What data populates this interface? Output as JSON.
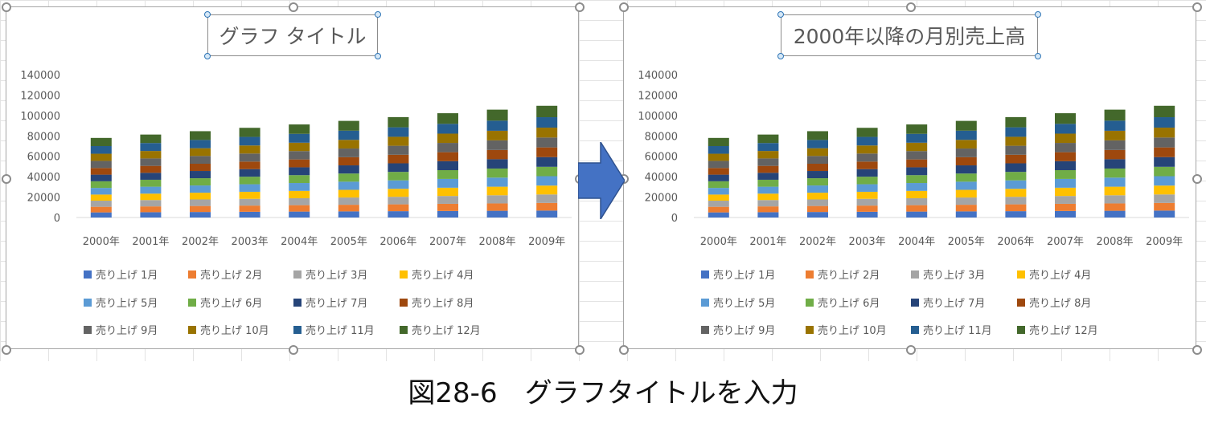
{
  "caption": "図28-6　グラフタイトルを入力",
  "colors": {
    "series": [
      "#4472c4",
      "#ed7d31",
      "#a5a5a5",
      "#ffc000",
      "#5b9bd5",
      "#70ad47",
      "#264478",
      "#9e480e",
      "#636363",
      "#997300",
      "#255e91",
      "#43682b"
    ],
    "arrow": "#4472c4",
    "selection_handle": "#2e75b6"
  },
  "charts": [
    {
      "title": "グラフ タイトル"
    },
    {
      "title": "2000年以降の月別売上高"
    }
  ],
  "chart_data": [
    {
      "type": "bar",
      "stacked": true,
      "title": "グラフ タイトル",
      "categories": [
        "2000年",
        "2001年",
        "2002年",
        "2003年",
        "2004年",
        "2005年",
        "2006年",
        "2007年",
        "2008年",
        "2009年"
      ],
      "ylim": [
        0,
        140000
      ],
      "yticks": [
        0,
        20000,
        40000,
        60000,
        80000,
        100000,
        120000,
        140000
      ],
      "grid": false,
      "legend": "bottom",
      "series": [
        {
          "name": "売り上げ 1月",
          "values": [
            5000,
            5200,
            5400,
            5600,
            5800,
            6000,
            6200,
            6400,
            6600,
            6800
          ]
        },
        {
          "name": "売り上げ 2月",
          "values": [
            5500,
            5700,
            5900,
            6100,
            6300,
            6500,
            6700,
            7000,
            7200,
            7500
          ]
        },
        {
          "name": "売り上げ 3月",
          "values": [
            6000,
            6200,
            6400,
            6600,
            6800,
            7100,
            7400,
            7700,
            8000,
            8300
          ]
        },
        {
          "name": "売り上げ 4月",
          "values": [
            6000,
            6300,
            6600,
            6900,
            7200,
            7500,
            7800,
            8100,
            8400,
            8700
          ]
        },
        {
          "name": "売り上げ 5月",
          "values": [
            6500,
            6800,
            7100,
            7400,
            7700,
            8000,
            8300,
            8600,
            8900,
            9200
          ]
        },
        {
          "name": "売り上げ 6月",
          "values": [
            6500,
            6800,
            7100,
            7400,
            7700,
            8000,
            8300,
            8600,
            8900,
            9200
          ]
        },
        {
          "name": "売り上げ 7月",
          "values": [
            6500,
            6800,
            7100,
            7400,
            7700,
            8000,
            8400,
            8800,
            9100,
            9500
          ]
        },
        {
          "name": "売り上げ 8月",
          "values": [
            6500,
            6800,
            7100,
            7400,
            7700,
            8000,
            8400,
            8800,
            9100,
            9500
          ]
        },
        {
          "name": "売り上げ 9月",
          "values": [
            7000,
            7300,
            7600,
            7900,
            8200,
            8500,
            8800,
            9100,
            9400,
            9700
          ]
        },
        {
          "name": "売り上げ 10月",
          "values": [
            7000,
            7300,
            7600,
            7900,
            8200,
            8500,
            8800,
            9100,
            9400,
            9700
          ]
        },
        {
          "name": "売り上げ 11月",
          "values": [
            7500,
            7800,
            8100,
            8400,
            8700,
            9000,
            9300,
            9600,
            9900,
            10200
          ]
        },
        {
          "name": "売り上げ 12月",
          "values": [
            8000,
            8300,
            8600,
            8900,
            9200,
            9600,
            10000,
            10400,
            10800,
            11200
          ]
        }
      ]
    },
    {
      "type": "bar",
      "stacked": true,
      "title": "2000年以降の月別売上高",
      "categories": [
        "2000年",
        "2001年",
        "2002年",
        "2003年",
        "2004年",
        "2005年",
        "2006年",
        "2007年",
        "2008年",
        "2009年"
      ],
      "ylim": [
        0,
        140000
      ],
      "yticks": [
        0,
        20000,
        40000,
        60000,
        80000,
        100000,
        120000,
        140000
      ],
      "grid": false,
      "legend": "bottom",
      "series": [
        {
          "name": "売り上げ 1月",
          "values": [
            5000,
            5200,
            5400,
            5600,
            5800,
            6000,
            6200,
            6400,
            6600,
            6800
          ]
        },
        {
          "name": "売り上げ 2月",
          "values": [
            5500,
            5700,
            5900,
            6100,
            6300,
            6500,
            6700,
            7000,
            7200,
            7500
          ]
        },
        {
          "name": "売り上げ 3月",
          "values": [
            6000,
            6200,
            6400,
            6600,
            6800,
            7100,
            7400,
            7700,
            8000,
            8300
          ]
        },
        {
          "name": "売り上げ 4月",
          "values": [
            6000,
            6300,
            6600,
            6900,
            7200,
            7500,
            7800,
            8100,
            8400,
            8700
          ]
        },
        {
          "name": "売り上げ 5月",
          "values": [
            6500,
            6800,
            7100,
            7400,
            7700,
            8000,
            8300,
            8600,
            8900,
            9200
          ]
        },
        {
          "name": "売り上げ 6月",
          "values": [
            6500,
            6800,
            7100,
            7400,
            7700,
            8000,
            8300,
            8600,
            8900,
            9200
          ]
        },
        {
          "name": "売り上げ 7月",
          "values": [
            6500,
            6800,
            7100,
            7400,
            7700,
            8000,
            8400,
            8800,
            9100,
            9500
          ]
        },
        {
          "name": "売り上げ 8月",
          "values": [
            6500,
            6800,
            7100,
            7400,
            7700,
            8000,
            8400,
            8800,
            9100,
            9500
          ]
        },
        {
          "name": "売り上げ 9月",
          "values": [
            7000,
            7300,
            7600,
            7900,
            8200,
            8500,
            8800,
            9100,
            9400,
            9700
          ]
        },
        {
          "name": "売り上げ 10月",
          "values": [
            7000,
            7300,
            7600,
            7900,
            8200,
            8500,
            8800,
            9100,
            9400,
            9700
          ]
        },
        {
          "name": "売り上げ 11月",
          "values": [
            7500,
            7800,
            8100,
            8400,
            8700,
            9000,
            9300,
            9600,
            9900,
            10200
          ]
        },
        {
          "name": "売り上げ 12月",
          "values": [
            8000,
            8300,
            8600,
            8900,
            9200,
            9600,
            10000,
            10400,
            10800,
            11200
          ]
        }
      ]
    }
  ]
}
